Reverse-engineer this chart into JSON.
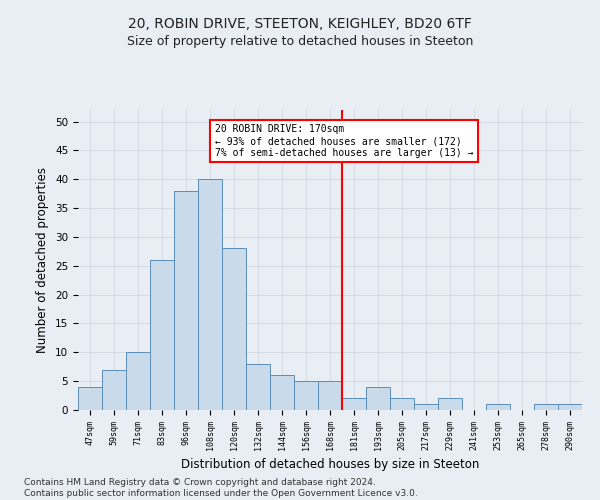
{
  "title1": "20, ROBIN DRIVE, STEETON, KEIGHLEY, BD20 6TF",
  "title2": "Size of property relative to detached houses in Steeton",
  "xlabel": "Distribution of detached houses by size in Steeton",
  "ylabel": "Number of detached properties",
  "categories": [
    "47sqm",
    "59sqm",
    "71sqm",
    "83sqm",
    "96sqm",
    "108sqm",
    "120sqm",
    "132sqm",
    "144sqm",
    "156sqm",
    "168sqm",
    "181sqm",
    "193sqm",
    "205sqm",
    "217sqm",
    "229sqm",
    "241sqm",
    "253sqm",
    "265sqm",
    "278sqm",
    "290sqm"
  ],
  "values": [
    4,
    7,
    10,
    26,
    38,
    40,
    28,
    8,
    6,
    5,
    5,
    2,
    4,
    2,
    1,
    2,
    0,
    1,
    0,
    1,
    1
  ],
  "bar_color": "#c9daea",
  "bar_edge_color": "#5b8db8",
  "grid_color": "#d0d8e0",
  "vline_x": 10.5,
  "vline_color": "red",
  "annotation_text": "20 ROBIN DRIVE: 170sqm\n← 93% of detached houses are smaller (172)\n7% of semi-detached houses are larger (13) →",
  "annotation_box_color": "white",
  "annotation_box_edge_color": "red",
  "ylim": [
    0,
    52
  ],
  "yticks": [
    0,
    5,
    10,
    15,
    20,
    25,
    30,
    35,
    40,
    45,
    50
  ],
  "footer_text": "Contains HM Land Registry data © Crown copyright and database right 2024.\nContains public sector information licensed under the Open Government Licence v3.0.",
  "bg_color": "#e8eef4",
  "title1_fontsize": 10,
  "title2_fontsize": 9,
  "xlabel_fontsize": 8.5,
  "ylabel_fontsize": 8.5,
  "footer_fontsize": 6.5
}
